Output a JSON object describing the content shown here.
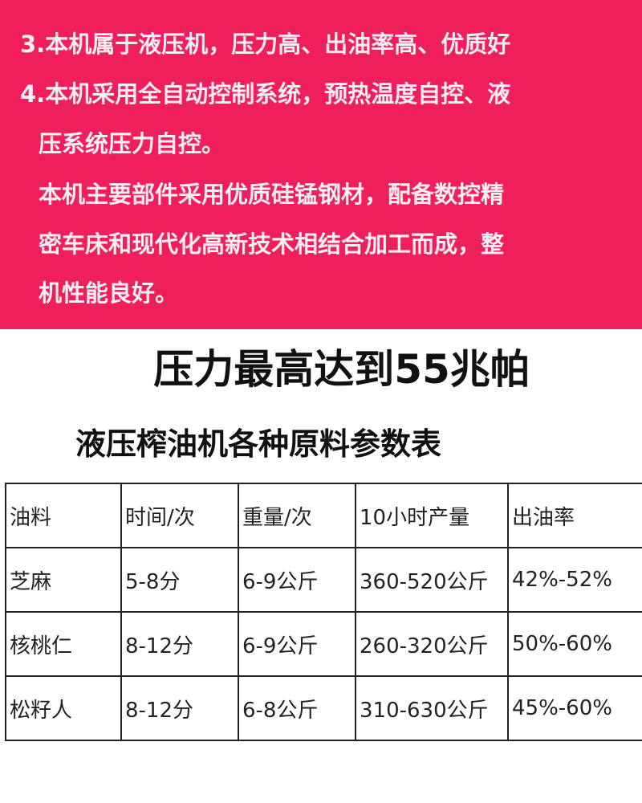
{
  "banner": {
    "background_color": "#ee1f5a",
    "lines": [
      "3.本机属于液压机，压力高、出油率高、优质好",
      "4.本机采用全自动控制系统，预热温度自控、液",
      "压系统压力自控。",
      "本机主要部件采用优质硅锰钢材，配备数控精",
      "密车床和现代化高新技术相结合加工而成，整",
      "机性能良好。"
    ]
  },
  "headline": "压力最高达到55兆帕",
  "table_title": "液压榨油机各种原料参数表",
  "table": {
    "headers": [
      "油料",
      "时间/次",
      "重量/次",
      "10小时产量",
      "出油率"
    ],
    "rows": [
      [
        "芝麻",
        "5-8分",
        "6-9公斤",
        "360-520公斤",
        "42%-52%"
      ],
      [
        "核桃仁",
        "8-12分",
        "6-9公斤",
        "260-320公斤",
        "50%-60%"
      ],
      [
        "松籽人",
        "8-12分",
        "6-8公斤",
        "310-630公斤",
        "45%-60%"
      ]
    ]
  }
}
